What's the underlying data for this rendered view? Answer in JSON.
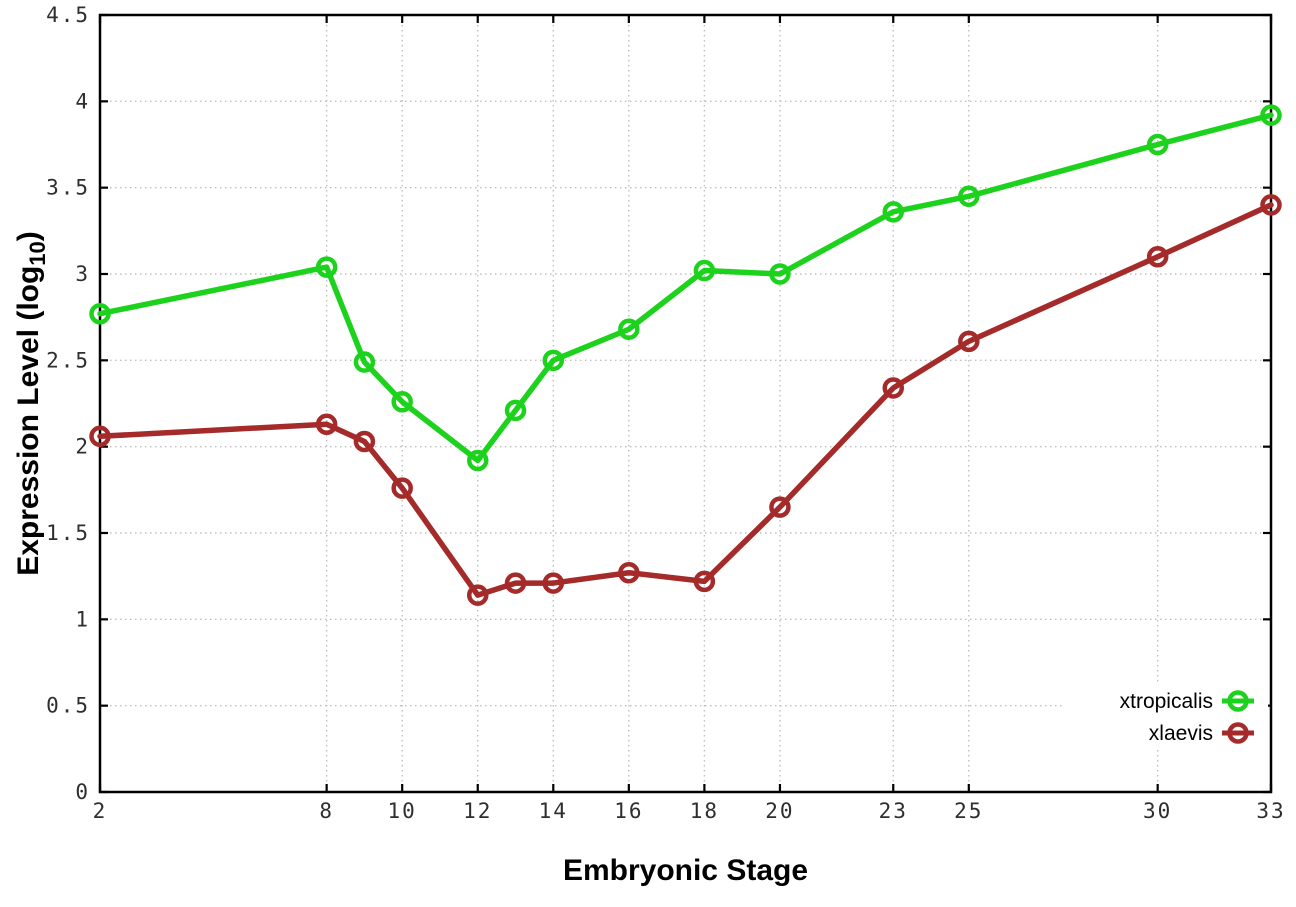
{
  "figure": {
    "background_color": "#ffffff",
    "frame_color": "#000000",
    "grid_color": "#c0c0c0"
  },
  "chart_data": {
    "type": "line",
    "title": "",
    "xlabel": "Embryonic Stage",
    "ylabel": "Expression Level (log10)",
    "ylabel_main": "Expression Level (log",
    "ylabel_sub": "10",
    "ylabel_end": ")",
    "x": [
      2,
      8,
      9,
      10,
      12,
      13,
      14,
      16,
      18,
      20,
      23,
      25,
      30,
      33
    ],
    "series": [
      {
        "name": "xtropicalis",
        "color": "#1dd21d",
        "marker": "open-circle",
        "values": [
          2.77,
          3.04,
          2.49,
          2.26,
          1.92,
          2.21,
          2.5,
          2.68,
          3.02,
          3.0,
          3.36,
          3.45,
          3.75,
          3.92
        ]
      },
      {
        "name": "xlaevis",
        "color": "#a52a2a",
        "marker": "open-circle",
        "values": [
          2.06,
          2.13,
          2.03,
          1.76,
          1.14,
          1.21,
          1.21,
          1.27,
          1.22,
          1.65,
          2.34,
          2.61,
          3.1,
          3.4
        ]
      }
    ],
    "x_ticks": [
      2,
      8,
      10,
      12,
      14,
      16,
      18,
      20,
      23,
      25,
      30,
      33
    ],
    "y_ticks": [
      0,
      0.5,
      1,
      1.5,
      2,
      2.5,
      3,
      3.5,
      4,
      4.5
    ],
    "xlim": [
      2,
      33
    ],
    "ylim": [
      0,
      4.5
    ],
    "grid": true,
    "grid_style": "dotted",
    "legend_position": "bottom-right",
    "tick_direction": "inward"
  }
}
